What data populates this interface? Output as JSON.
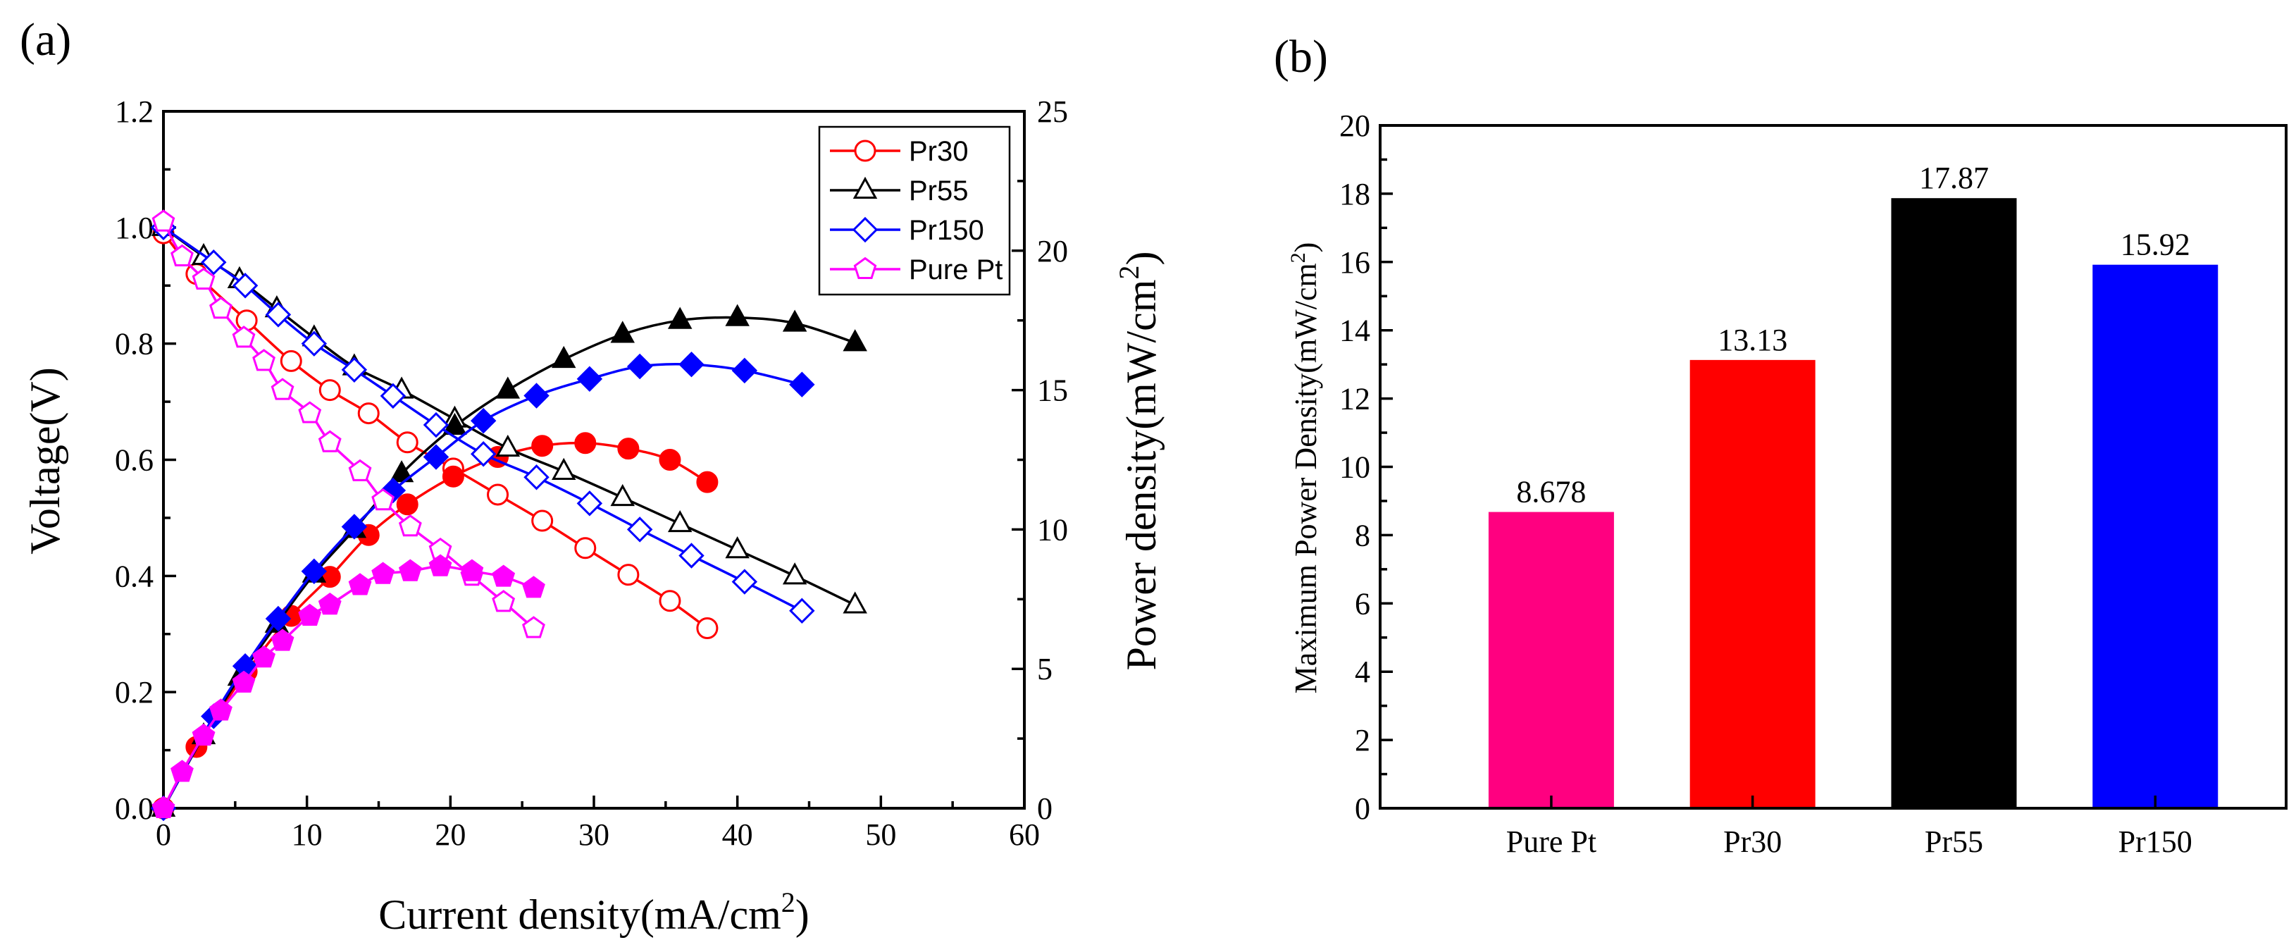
{
  "panel_labels": {
    "a": "(a)",
    "b": "(b)"
  },
  "colors": {
    "Pr30": "#ff0000",
    "Pr55": "#000000",
    "Pr150": "#0000ff",
    "Pure Pt": "#ff00ff",
    "PurePtBar": "#ff0080"
  },
  "chart_data": [
    {
      "type": "line",
      "title": "",
      "xlabel": "Current density(mA/cm",
      "xlabel_sup": "2",
      "xlabel_close": ")",
      "ylabel": "Voltage(V)",
      "y2label": "Power density(mW/cm",
      "y2label_sup": "2",
      "y2label_close": ")",
      "xlim": [
        0,
        60
      ],
      "ylim": [
        0,
        1.2
      ],
      "y2lim": [
        0,
        25
      ],
      "xticks": [
        "0",
        "10",
        "20",
        "30",
        "40",
        "50",
        "60"
      ],
      "yticks": [
        "0.0",
        "0.2",
        "0.4",
        "0.6",
        "0.8",
        "1.0",
        "1.2"
      ],
      "y2ticks": [
        "0",
        "5",
        "10",
        "15",
        "20",
        "25"
      ],
      "legend_position": "top-right",
      "series": [
        {
          "name": "Pr30",
          "color": "#ff0000",
          "marker": "circle",
          "voltage": {
            "x": [
              0,
              2.3,
              5.8,
              8.9,
              11.6,
              14.3,
              17,
              20.2,
              23.3,
              26.4,
              29.4,
              32.4,
              35.3,
              37.9
            ],
            "y": [
              0.99,
              0.92,
              0.84,
              0.77,
              0.72,
              0.68,
              0.63,
              0.585,
              0.54,
              0.495,
              0.448,
              0.402,
              0.357,
              0.31
            ]
          },
          "power": {
            "x": [
              0,
              2.3,
              5.8,
              8.9,
              11.6,
              14.3,
              17,
              20.2,
              23.3,
              26.4,
              29.4,
              32.4,
              35.3,
              37.9
            ],
            "y": [
              0,
              2.2,
              4.9,
              6.9,
              8.3,
              9.8,
              10.9,
              11.9,
              12.6,
              13.0,
              13.1,
              12.9,
              12.5,
              11.7
            ]
          }
        },
        {
          "name": "Pr55",
          "color": "#000000",
          "marker": "triangle",
          "voltage": {
            "x": [
              0,
              2.8,
              5.3,
              7.9,
              10.5,
              13.3,
              16.6,
              20.3,
              24,
              27.9,
              32,
              36,
              40,
              44,
              48.2
            ],
            "y": [
              1.0,
              0.95,
              0.91,
              0.86,
              0.81,
              0.76,
              0.72,
              0.67,
              0.62,
              0.58,
              0.535,
              0.49,
              0.445,
              0.4,
              0.35
            ]
          },
          "power": {
            "x": [
              0,
              2.8,
              5.3,
              7.9,
              10.5,
              13.3,
              16.6,
              20.3,
              24,
              27.9,
              32,
              36,
              40,
              44,
              48.2
            ],
            "y": [
              0,
              2.6,
              4.7,
              6.6,
              8.4,
              10.0,
              12.0,
              13.7,
              15.0,
              16.1,
              17.0,
              17.5,
              17.6,
              17.4,
              16.7
            ]
          }
        },
        {
          "name": "Pr150",
          "color": "#0000ff",
          "marker": "diamond",
          "voltage": {
            "x": [
              0,
              3.5,
              5.7,
              8,
              10.5,
              13.3,
              16,
              19,
              22.3,
              26,
              29.7,
              33.2,
              36.8,
              40.5,
              44.5
            ],
            "y": [
              1.0,
              0.94,
              0.9,
              0.85,
              0.8,
              0.755,
              0.71,
              0.66,
              0.61,
              0.57,
              0.525,
              0.48,
              0.435,
              0.39,
              0.34
            ]
          },
          "power": {
            "x": [
              0,
              3.5,
              5.7,
              8,
              10.5,
              13.3,
              16,
              19,
              22.3,
              26,
              29.7,
              33.2,
              36.8,
              40.5,
              44.5
            ],
            "y": [
              0,
              3.3,
              5.1,
              6.8,
              8.5,
              10.1,
              11.4,
              12.6,
              13.9,
              14.8,
              15.4,
              15.85,
              15.92,
              15.7,
              15.2
            ]
          }
        },
        {
          "name": "Pure Pt",
          "color": "#ff00ff",
          "marker": "pentagon",
          "voltage": {
            "x": [
              0,
              1.3,
              2.8,
              4,
              5.6,
              7,
              8.3,
              10.2,
              11.6,
              13.7,
              15.3,
              17.2,
              19.3,
              21.5,
              23.7,
              25.8
            ],
            "y": [
              1.01,
              0.95,
              0.91,
              0.86,
              0.81,
              0.77,
              0.72,
              0.68,
              0.63,
              0.58,
              0.53,
              0.485,
              0.445,
              0.4,
              0.355,
              0.31
            ]
          },
          "power": {
            "x": [
              0,
              1.3,
              2.8,
              4,
              5.6,
              7,
              8.3,
              10.2,
              11.6,
              13.7,
              15.3,
              17.2,
              19.3,
              21.5,
              23.7,
              25.8
            ],
            "y": [
              0,
              1.3,
              2.6,
              3.5,
              4.5,
              5.4,
              6.0,
              6.9,
              7.3,
              8.0,
              8.4,
              8.5,
              8.678,
              8.5,
              8.3,
              7.9
            ]
          }
        }
      ]
    },
    {
      "type": "bar",
      "title": "",
      "xlabel": "",
      "ylabel": "Maximum Power Density(mW/cm",
      "ylabel_sup": "2",
      "ylabel_close": ")",
      "ylim": [
        0,
        20
      ],
      "yticks": [
        "0",
        "2",
        "4",
        "6",
        "8",
        "10",
        "12",
        "14",
        "16",
        "18",
        "20"
      ],
      "categories": [
        "Pure Pt",
        "Pr30",
        "Pr55",
        "Pr150"
      ],
      "values": [
        8.678,
        13.13,
        17.87,
        15.92
      ],
      "value_labels": [
        "8.678",
        "13.13",
        "17.87",
        "15.92"
      ],
      "bar_colors": [
        "#ff0080",
        "#ff0000",
        "#000000",
        "#0000ff"
      ]
    }
  ]
}
